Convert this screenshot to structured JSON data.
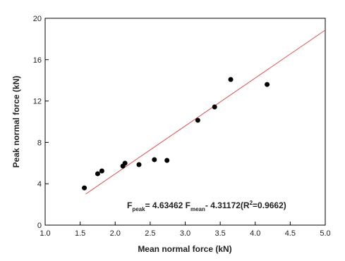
{
  "chart_data": {
    "type": "scatter",
    "x_label": "Mean normal force (kN)",
    "y_label": "Peak normal force (kN)",
    "xlim": [
      1.0,
      5.0
    ],
    "ylim": [
      0,
      20
    ],
    "xticks": [
      {
        "value": 1,
        "label": "1.0"
      },
      1.5,
      {
        "value": 2,
        "label": "2.0"
      },
      2.5,
      {
        "value": 3,
        "label": "3.0"
      },
      3.5,
      {
        "value": 4,
        "label": "4.0"
      },
      4.5,
      {
        "value": 5,
        "label": "5.0"
      }
    ],
    "yticks": [
      0,
      4,
      8,
      12,
      16,
      20
    ],
    "series": [
      {
        "name": "data",
        "color": "#000000",
        "x": [
          1.56,
          1.75,
          1.81,
          2.11,
          2.14,
          2.34,
          2.56,
          2.74,
          3.18,
          3.42,
          3.65,
          4.17
        ],
        "values": [
          3.6,
          4.97,
          5.24,
          5.71,
          5.99,
          5.85,
          6.33,
          6.26,
          10.14,
          11.43,
          14.08,
          13.6
        ]
      },
      {
        "name": "fit",
        "color": "#e05050",
        "x": [
          1.58,
          5.0
        ],
        "values": [
          3.01,
          18.86
        ]
      }
    ],
    "annotation": [
      "F",
      "peak",
      "= 4.63462 F",
      "mean",
      "- 4.31172(R",
      "2",
      "=0.9662)"
    ]
  }
}
